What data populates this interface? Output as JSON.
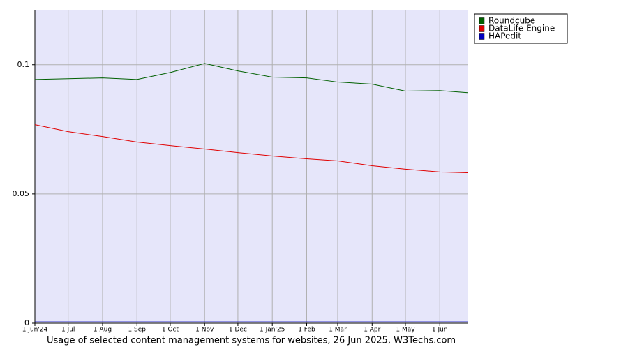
{
  "chart_data": {
    "type": "line",
    "title": "Usage of selected content management systems for websites, 26 Jun 2025, W3Techs.com",
    "x": [
      0,
      30,
      61,
      92,
      122,
      153,
      183,
      214,
      245,
      273,
      304,
      334,
      365,
      390
    ],
    "xlim": [
      0,
      390
    ],
    "xticks": [
      {
        "value": 0,
        "label": "1 Jun'24"
      },
      {
        "value": 30,
        "label": "1 Jul"
      },
      {
        "value": 61,
        "label": "1 Aug"
      },
      {
        "value": 92,
        "label": "1 Sep"
      },
      {
        "value": 122,
        "label": "1 Oct"
      },
      {
        "value": 153,
        "label": "1 Nov"
      },
      {
        "value": 183,
        "label": "1 Dec"
      },
      {
        "value": 214,
        "label": "1 Jan'25"
      },
      {
        "value": 245,
        "label": "1 Feb"
      },
      {
        "value": 273,
        "label": "1 Mar"
      },
      {
        "value": 304,
        "label": "1 Apr"
      },
      {
        "value": 334,
        "label": "1 May"
      },
      {
        "value": 365,
        "label": "1 Jun"
      }
    ],
    "ylim": [
      0,
      0.121
    ],
    "yticks": [
      0,
      0.05,
      0.1
    ],
    "grid": true,
    "legend": "upper right outside",
    "series": [
      {
        "name": "Roundcube",
        "color": "#006000",
        "values": [
          0.0943,
          0.0946,
          0.0949,
          0.0943,
          0.097,
          0.1005,
          0.0976,
          0.0952,
          0.0949,
          0.0933,
          0.0925,
          0.0898,
          0.09,
          0.0892
        ]
      },
      {
        "name": "DataLife Engine",
        "color": "#e00000",
        "values": [
          0.0768,
          0.0741,
          0.0722,
          0.0701,
          0.0687,
          0.0674,
          0.066,
          0.0647,
          0.0636,
          0.0628,
          0.0609,
          0.0596,
          0.0585,
          0.0582
        ]
      },
      {
        "name": "HAPedit",
        "color": "#0000c0",
        "values": [
          0.0005,
          0.0005,
          0.0005,
          0.0005,
          0.0005,
          0.0005,
          0.0005,
          0.0005,
          0.0005,
          0.0005,
          0.0005,
          0.0005,
          0.0005,
          0.0005
        ]
      }
    ]
  }
}
